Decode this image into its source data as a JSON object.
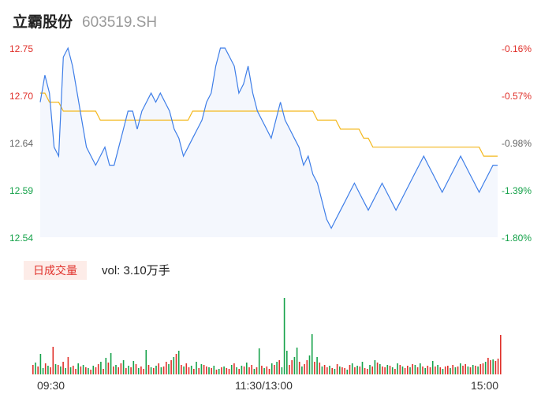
{
  "header": {
    "name": "立霸股份",
    "code": "603519.SH"
  },
  "volume": {
    "tag": "日成交量",
    "label": "vol: 3.10万手"
  },
  "colors": {
    "price_line": "#3e7ee8",
    "avg_line": "#f4b81c",
    "up": "#e0302a",
    "down": "#16a24a",
    "area_fill": "#f4f7fd"
  },
  "chart_data": [
    {
      "type": "line",
      "title": "",
      "x_ticks": [
        "09:30",
        "11:30/13:00",
        "15:00"
      ],
      "y_ticks": [
        "12.75",
        "12.70",
        "12.64",
        "12.59",
        "12.54"
      ],
      "y_ticks_right": [
        "-0.16%",
        "-0.57%",
        "-0.98%",
        "-1.39%",
        "-1.80%"
      ],
      "ylim": [
        12.54,
        12.75
      ],
      "grid": false,
      "series": [
        {
          "values": [
            12.69,
            12.72,
            12.7,
            12.64,
            12.63,
            12.74,
            12.75,
            12.73,
            12.7,
            12.67,
            12.64,
            12.63,
            12.62,
            12.63,
            12.64,
            12.62,
            12.62,
            12.64,
            12.66,
            12.68,
            12.68,
            12.66,
            12.68,
            12.69,
            12.7,
            12.69,
            12.7,
            12.69,
            12.68,
            12.66,
            12.65,
            12.63,
            12.64,
            12.65,
            12.66,
            12.67,
            12.69,
            12.7,
            12.73,
            12.75,
            12.76,
            12.74,
            12.73,
            12.7,
            12.71,
            12.73,
            12.7,
            12.68,
            12.67,
            12.66,
            12.65,
            12.67,
            12.69,
            12.67,
            12.66,
            12.65,
            12.64,
            12.62,
            12.63,
            12.61,
            12.6,
            12.58,
            12.56,
            12.55,
            12.56,
            12.57,
            12.58,
            12.59,
            12.6,
            12.59,
            12.58,
            12.57,
            12.58,
            12.59,
            12.6,
            12.59,
            12.58,
            12.57,
            12.58,
            12.59,
            12.6,
            12.61,
            12.62,
            12.63,
            12.62,
            12.61,
            12.6,
            12.59,
            12.6,
            12.61,
            12.62,
            12.63,
            12.62,
            12.61,
            12.6,
            12.59,
            12.6,
            12.61,
            12.62,
            12.62
          ]
        },
        {
          "values": [
            12.7,
            12.7,
            12.69,
            12.69,
            12.69,
            12.68,
            12.68,
            12.68,
            12.68,
            12.68,
            12.68,
            12.68,
            12.68,
            12.67,
            12.67,
            12.67,
            12.67,
            12.67,
            12.67,
            12.67,
            12.67,
            12.67,
            12.67,
            12.67,
            12.67,
            12.67,
            12.67,
            12.67,
            12.67,
            12.67,
            12.67,
            12.67,
            12.67,
            12.68,
            12.68,
            12.68,
            12.68,
            12.68,
            12.68,
            12.68,
            12.68,
            12.68,
            12.68,
            12.68,
            12.68,
            12.68,
            12.68,
            12.68,
            12.68,
            12.68,
            12.68,
            12.68,
            12.68,
            12.68,
            12.68,
            12.68,
            12.68,
            12.68,
            12.68,
            12.68,
            12.67,
            12.67,
            12.67,
            12.67,
            12.67,
            12.66,
            12.66,
            12.66,
            12.66,
            12.66,
            12.65,
            12.65,
            12.64,
            12.64,
            12.64,
            12.64,
            12.64,
            12.64,
            12.64,
            12.64,
            12.64,
            12.64,
            12.64,
            12.64,
            12.64,
            12.64,
            12.64,
            12.64,
            12.64,
            12.64,
            12.64,
            12.64,
            12.64,
            12.64,
            12.64,
            12.64,
            12.63,
            12.63,
            12.63,
            12.63
          ]
        }
      ]
    },
    {
      "type": "bar",
      "title": "",
      "values": [
        12,
        15,
        10,
        26,
        8,
        14,
        11,
        9,
        35,
        13,
        12,
        10,
        16,
        8,
        22,
        9,
        11,
        7,
        14,
        10,
        12,
        9,
        8,
        6,
        11,
        9,
        13,
        16,
        7,
        21,
        15,
        27,
        10,
        12,
        9,
        14,
        18,
        8,
        11,
        9,
        17,
        13,
        8,
        10,
        7,
        31,
        12,
        9,
        8,
        11,
        14,
        9,
        10,
        16,
        13,
        18,
        22,
        26,
        30,
        12,
        10,
        14,
        9,
        11,
        7,
        16,
        8,
        13,
        12,
        10,
        9,
        8,
        11,
        6,
        7,
        9,
        10,
        8,
        7,
        12,
        14,
        9,
        7,
        11,
        10,
        15,
        9,
        12,
        7,
        9,
        33,
        11,
        8,
        10,
        7,
        14,
        12,
        16,
        18,
        9,
        97,
        30,
        12,
        18,
        22,
        34,
        16,
        10,
        13,
        18,
        24,
        51,
        16,
        22,
        15,
        10,
        12,
        9,
        11,
        8,
        7,
        13,
        10,
        9,
        8,
        6,
        12,
        14,
        9,
        11,
        10,
        16,
        8,
        7,
        12,
        10,
        18,
        15,
        13,
        10,
        9,
        12,
        11,
        9,
        7,
        14,
        12,
        10,
        8,
        11,
        9,
        13,
        12,
        9,
        14,
        10,
        8,
        11,
        9,
        17,
        10,
        12,
        9,
        7,
        10,
        11,
        8,
        12,
        9,
        10,
        14,
        11,
        13,
        10,
        9,
        12,
        11,
        10,
        13,
        14,
        16,
        21,
        18,
        19,
        17,
        20,
        50
      ],
      "up": [
        1,
        0,
        1,
        0,
        0,
        1,
        0,
        1,
        1,
        0,
        1,
        0,
        1,
        0,
        1,
        0,
        1,
        1,
        0,
        1,
        0,
        1,
        0,
        1,
        0,
        1,
        1,
        0,
        1,
        0,
        1,
        0,
        1,
        0,
        1,
        1,
        0,
        1,
        0,
        1,
        0,
        1,
        0,
        1,
        1,
        0,
        1,
        0,
        1,
        0,
        1,
        0,
        1,
        1,
        0,
        1,
        0,
        1,
        0,
        1,
        0,
        1,
        1,
        0,
        1,
        0,
        1,
        0,
        1,
        1,
        0,
        1,
        0,
        1,
        0,
        1,
        0,
        1,
        1,
        0,
        1,
        0,
        1,
        0,
        1,
        0,
        1,
        1,
        0,
        1,
        0,
        1,
        0,
        1,
        1,
        0,
        1,
        0,
        1,
        0,
        0,
        0,
        1,
        1,
        0,
        0,
        1,
        0,
        1,
        1,
        0,
        0,
        1,
        0,
        1,
        0,
        1,
        1,
        0,
        1,
        0,
        1,
        0,
        1,
        1,
        0,
        1,
        0,
        1,
        0,
        1,
        0,
        1,
        1,
        0,
        1,
        0,
        1,
        0,
        1,
        1,
        0,
        1,
        0,
        1,
        0,
        1,
        0,
        1,
        1,
        0,
        1,
        0,
        1,
        0,
        1,
        0,
        1,
        1,
        0,
        1,
        0,
        1,
        0,
        1,
        1,
        0,
        1,
        0,
        1,
        0,
        1,
        1,
        0,
        1,
        0,
        1,
        0,
        1,
        1,
        0,
        1,
        1,
        0,
        1,
        1,
        1
      ]
    }
  ]
}
